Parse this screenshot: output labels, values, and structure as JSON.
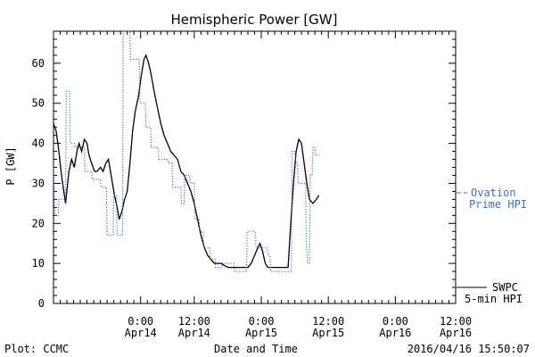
{
  "colors": {
    "swpc": "#000000",
    "ovation": "#3b6fd6",
    "axis": "#000000"
  },
  "chart_data": {
    "type": "line",
    "title": "Hemispheric Power [GW]",
    "xlabel": "Date and Time",
    "ylabel": "P [GW]",
    "ylim": [
      0,
      68
    ],
    "xlim": [
      -13,
      47
    ],
    "x_unit": "hours since 2016-04-14 00:00",
    "yticks": [
      0,
      10,
      20,
      30,
      40,
      50,
      60
    ],
    "xticks": [
      {
        "x": 0,
        "label": "0:00",
        "sub": "Apr14"
      },
      {
        "x": 8,
        "label": "12:00",
        "sub": "Apr14"
      },
      {
        "x": 18,
        "label": "0:00",
        "sub": "Apr15"
      },
      {
        "x": 28,
        "label": "12:00",
        "sub": "Apr15"
      },
      {
        "x": 38,
        "label": "0:00",
        "sub": "Apr16"
      },
      {
        "x": 47,
        "label": "12:00",
        "sub": "Apr16"
      }
    ],
    "series": [
      {
        "name": "SWPC 5-min HPI",
        "label_line1": "SWPC",
        "label_line2": "5-min HPI",
        "style": "solid",
        "points": [
          [
            -13,
            45
          ],
          [
            -12.6,
            43
          ],
          [
            -12.2,
            38
          ],
          [
            -11.8,
            32
          ],
          [
            -11.2,
            25
          ],
          [
            -10.7,
            33
          ],
          [
            -10.3,
            36
          ],
          [
            -9.9,
            34
          ],
          [
            -9.5,
            38
          ],
          [
            -9.2,
            40
          ],
          [
            -8.8,
            38
          ],
          [
            -8.4,
            41
          ],
          [
            -8,
            40
          ],
          [
            -7.7,
            37
          ],
          [
            -7.3,
            35
          ],
          [
            -6.9,
            33
          ],
          [
            -6.5,
            33
          ],
          [
            -6,
            34
          ],
          [
            -5.6,
            33
          ],
          [
            -5.2,
            35
          ],
          [
            -4.8,
            36
          ],
          [
            -4.3,
            31
          ],
          [
            -3.9,
            27
          ],
          [
            -3.5,
            24
          ],
          [
            -3.2,
            21
          ],
          [
            -2.8,
            23
          ],
          [
            -2.4,
            26
          ],
          [
            -2,
            28
          ],
          [
            -1.6,
            35
          ],
          [
            -1.2,
            43
          ],
          [
            -0.8,
            48
          ],
          [
            -0.3,
            52
          ],
          [
            0.1,
            57
          ],
          [
            0.5,
            61
          ],
          [
            0.8,
            62
          ],
          [
            1.2,
            60
          ],
          [
            1.6,
            57
          ],
          [
            2,
            53
          ],
          [
            2.5,
            49
          ],
          [
            3,
            45
          ],
          [
            3.5,
            42
          ],
          [
            4,
            40
          ],
          [
            4.5,
            38
          ],
          [
            5,
            37
          ],
          [
            5.5,
            36
          ],
          [
            6,
            33
          ],
          [
            6.5,
            32
          ],
          [
            7,
            30
          ],
          [
            7.5,
            28
          ],
          [
            8,
            25
          ],
          [
            8.5,
            21
          ],
          [
            9,
            17
          ],
          [
            9.5,
            14
          ],
          [
            10,
            12
          ],
          [
            10.5,
            11
          ],
          [
            11,
            10
          ],
          [
            11.5,
            10
          ],
          [
            12,
            10
          ],
          [
            13,
            9
          ],
          [
            14,
            9
          ],
          [
            15,
            9
          ],
          [
            16,
            9
          ],
          [
            16.5,
            10
          ],
          [
            17,
            12
          ],
          [
            17.5,
            14
          ],
          [
            17.8,
            15
          ],
          [
            18.2,
            13
          ],
          [
            18.6,
            10
          ],
          [
            19,
            9
          ],
          [
            20,
            9
          ],
          [
            21,
            9
          ],
          [
            22,
            9
          ],
          [
            22.4,
            20
          ],
          [
            22.8,
            30
          ],
          [
            23.2,
            38
          ],
          [
            23.6,
            41
          ],
          [
            24,
            40
          ],
          [
            24.4,
            35
          ],
          [
            24.8,
            30
          ],
          [
            25.2,
            26
          ],
          [
            25.7,
            25
          ],
          [
            26.2,
            26
          ],
          [
            26.6,
            27
          ]
        ]
      },
      {
        "name": "Ovation Prime HPI",
        "label_line1": "Ovation",
        "label_line2": "Prime HPI",
        "style": "dotted",
        "points": [
          [
            -13,
            34
          ],
          [
            -12.8,
            22
          ],
          [
            -12.3,
            22
          ],
          [
            -12.2,
            26
          ],
          [
            -11.2,
            26
          ],
          [
            -11.1,
            53
          ],
          [
            -10.6,
            53
          ],
          [
            -10.5,
            40
          ],
          [
            -9.9,
            40
          ],
          [
            -9.8,
            39
          ],
          [
            -8.4,
            39
          ],
          [
            -8.3,
            33
          ],
          [
            -7.3,
            33
          ],
          [
            -7.2,
            31
          ],
          [
            -6,
            31
          ],
          [
            -5.9,
            29
          ],
          [
            -5.1,
            29
          ],
          [
            -5,
            17
          ],
          [
            -4.1,
            17
          ],
          [
            -4,
            27
          ],
          [
            -3.6,
            27
          ],
          [
            -3.5,
            17
          ],
          [
            -2.7,
            17
          ],
          [
            -2.6,
            68
          ],
          [
            -1.6,
            68
          ],
          [
            -1.5,
            61
          ],
          [
            -0.2,
            61
          ],
          [
            -0.1,
            50
          ],
          [
            0.7,
            50
          ],
          [
            0.8,
            44
          ],
          [
            1.5,
            44
          ],
          [
            1.6,
            39
          ],
          [
            2.6,
            39
          ],
          [
            2.7,
            36
          ],
          [
            4.1,
            36
          ],
          [
            4.2,
            35
          ],
          [
            4.7,
            35
          ],
          [
            4.8,
            29
          ],
          [
            6,
            29
          ],
          [
            6.1,
            25
          ],
          [
            6.5,
            25
          ],
          [
            6.6,
            32
          ],
          [
            7.3,
            32
          ],
          [
            7.4,
            30
          ],
          [
            8,
            30
          ],
          [
            8.1,
            21
          ],
          [
            8.7,
            21
          ],
          [
            8.8,
            18
          ],
          [
            9.3,
            18
          ],
          [
            9.4,
            14
          ],
          [
            10.3,
            14
          ],
          [
            10.4,
            11
          ],
          [
            11.1,
            11
          ],
          [
            11.2,
            9
          ],
          [
            12.1,
            9
          ],
          [
            12.2,
            10
          ],
          [
            13.9,
            10
          ],
          [
            14,
            8
          ],
          [
            15.8,
            8
          ],
          [
            15.9,
            18
          ],
          [
            17.1,
            18
          ],
          [
            17.2,
            14
          ],
          [
            18.9,
            14
          ],
          [
            19,
            12
          ],
          [
            19.3,
            12
          ],
          [
            19.4,
            8
          ],
          [
            22.5,
            8
          ],
          [
            22.6,
            38
          ],
          [
            23,
            38
          ],
          [
            23.2,
            35
          ],
          [
            23.4,
            35
          ],
          [
            23.5,
            30
          ],
          [
            24.6,
            30
          ],
          [
            24.7,
            16
          ],
          [
            24.9,
            10
          ],
          [
            25.2,
            10
          ],
          [
            25.3,
            32
          ],
          [
            25.6,
            32
          ],
          [
            25.7,
            39
          ],
          [
            26,
            39
          ],
          [
            26.1,
            37
          ],
          [
            26.6,
            37
          ]
        ]
      }
    ]
  },
  "footer": {
    "left": "Plot: CCMC",
    "center": "Date and Time",
    "right": "2016/04/16 15:50:07"
  }
}
